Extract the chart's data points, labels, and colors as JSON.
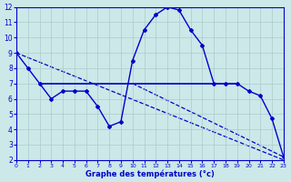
{
  "title": "Graphe des températures (°c)",
  "bg_color": "#cce8e8",
  "grid_color": "#aacccc",
  "line_color": "#0000cc",
  "ylim": [
    2,
    12
  ],
  "xlim": [
    0,
    23
  ],
  "yticks": [
    2,
    3,
    4,
    5,
    6,
    7,
    8,
    9,
    10,
    11,
    12
  ],
  "xticks": [
    0,
    1,
    2,
    3,
    4,
    5,
    6,
    7,
    8,
    9,
    10,
    11,
    12,
    13,
    14,
    15,
    16,
    17,
    18,
    19,
    20,
    21,
    22,
    23
  ],
  "curve1_x": [
    0,
    1,
    2,
    3,
    4,
    5,
    6,
    7,
    8,
    9,
    10,
    11,
    12,
    13,
    14,
    15,
    16,
    17,
    18,
    19,
    20,
    21,
    22,
    23
  ],
  "curve1_y": [
    9.0,
    8.0,
    7.0,
    6.0,
    6.5,
    6.5,
    6.5,
    5.5,
    4.2,
    4.5,
    8.5,
    10.5,
    11.5,
    12.0,
    11.8,
    10.5,
    9.5,
    7.0,
    7.0,
    7.0,
    6.5,
    6.2,
    4.7,
    2.2
  ],
  "curve2_x": [
    2,
    19
  ],
  "curve2_y": [
    7.0,
    7.0
  ],
  "curve3_x": [
    0,
    23
  ],
  "curve3_y": [
    9.0,
    2.0
  ],
  "curve4_x": [
    10,
    23
  ],
  "curve4_y": [
    7.0,
    2.2
  ]
}
